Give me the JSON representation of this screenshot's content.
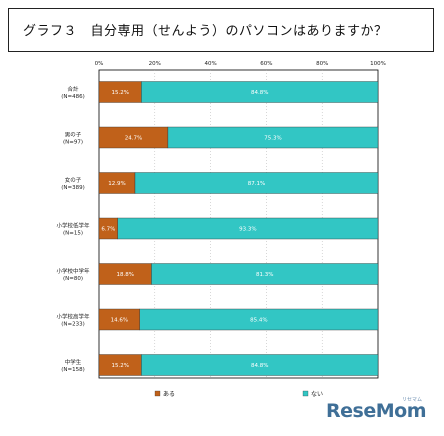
{
  "title": "グラフ３　自分専用（せんよう）のパソコンはありますか？",
  "watermark": "ReseMom",
  "watermark_sub": "リセマム",
  "colors": {
    "aru": "#c0611a",
    "nai": "#32c6c4",
    "frame": "#000000",
    "grid": "#b0b0b0"
  },
  "chart_data": {
    "type": "bar",
    "orientation": "horizontal",
    "stacked": true,
    "percent": true,
    "xlim": [
      0,
      100
    ],
    "ticks": [
      "0%",
      "20%",
      "40%",
      "60%",
      "80%",
      "100%"
    ],
    "categories": [
      [
        "合計",
        "(N=486)"
      ],
      [
        "男の子",
        "(N=97)"
      ],
      [
        "女の子",
        "(N=389)"
      ],
      [
        "小学校低学年",
        "(N=15)"
      ],
      [
        "小学校中学年",
        "(N=80)"
      ],
      [
        "小学校高学年",
        "(N=233)"
      ],
      [
        "中学生",
        "(N=158)"
      ]
    ],
    "series": [
      {
        "name": "ある",
        "values": [
          15.2,
          24.7,
          12.9,
          6.7,
          18.8,
          14.6,
          15.2
        ],
        "labels": [
          "15.2%",
          "24.7%",
          "12.9%",
          "6.7%",
          "18.8%",
          "14.6%",
          "15.2%"
        ]
      },
      {
        "name": "ない",
        "values": [
          84.8,
          75.3,
          87.1,
          93.3,
          81.3,
          85.4,
          84.8
        ],
        "labels": [
          "84.8%",
          "75.3%",
          "87.1%",
          "93.3%",
          "81.3%",
          "85.4%",
          "84.8%"
        ]
      }
    ],
    "legend_position": "bottom"
  }
}
